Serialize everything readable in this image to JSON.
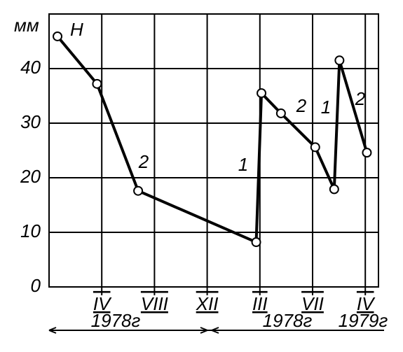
{
  "chart_data": {
    "type": "line",
    "y_label": "мм",
    "series_label": "H",
    "annotations": [
      "2",
      "1",
      "2",
      "1",
      "2"
    ],
    "x": [
      0.16,
      0.91,
      1.69,
      3.93,
      4.03,
      4.4,
      5.05,
      5.41,
      5.51,
      6.03
    ],
    "series": [
      {
        "name": "H",
        "color": "#000000",
        "values": [
          45.9,
          37.2,
          17.6,
          8.2,
          35.5,
          31.8,
          25.6,
          17.9,
          41.5,
          24.6
        ]
      }
    ],
    "xlim": [
      0,
      6.25
    ],
    "xticks": [
      {
        "value": 1,
        "label": "IV"
      },
      {
        "value": 2,
        "label": "VIII"
      },
      {
        "value": 3,
        "label": "XII"
      },
      {
        "value": 4,
        "label": "III"
      },
      {
        "value": 5,
        "label": "VII"
      },
      {
        "value": 6,
        "label": "IV"
      }
    ],
    "periods": [
      "1978г",
      "1978г",
      "1979г"
    ],
    "ylim": [
      0,
      50
    ],
    "yticks": [
      0,
      10,
      20,
      30,
      40
    ],
    "grid": true
  }
}
